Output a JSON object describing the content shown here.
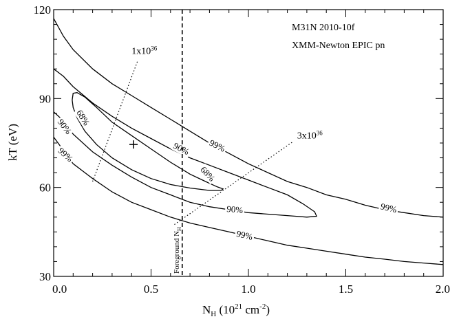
{
  "chart_data": {
    "type": "contour",
    "xlabel": "N",
    "xlabel_sub": "H",
    "xlabel_unit_pre": " (10",
    "xlabel_unit_sup1": "21",
    "xlabel_unit_mid": " cm",
    "xlabel_unit_sup2": "-2",
    "xlabel_unit_post": ")",
    "ylabel": "kT (eV)",
    "xlim": [
      0.0,
      2.0
    ],
    "ylim": [
      30,
      120
    ],
    "x_ticks": [
      {
        "value": 0.0,
        "label": "0.0"
      },
      {
        "value": 0.5,
        "label": "0.5"
      },
      {
        "value": 1.0,
        "label": "1.0"
      },
      {
        "value": 1.5,
        "label": "1.5"
      },
      {
        "value": 2.0,
        "label": "2.0"
      }
    ],
    "y_ticks": [
      {
        "value": 30,
        "label": "30"
      },
      {
        "value": 60,
        "label": "60"
      },
      {
        "value": 90,
        "label": "90"
      },
      {
        "value": 120,
        "label": "120"
      }
    ],
    "annotations": [
      "M31N 2010-10f",
      "XMM-Newton EPIC pn"
    ],
    "best_fit": {
      "x": 0.41,
      "y": 74.5
    },
    "foreground_nh": {
      "x": 0.66,
      "label": "Foreground N",
      "label_sub": "H"
    },
    "contours": [
      {
        "level": "68%",
        "closed": true,
        "points": [
          [
            0.1,
            91.8
          ],
          [
            0.12,
            92.0
          ],
          [
            0.16,
            90.5
          ],
          [
            0.22,
            87.0
          ],
          [
            0.3,
            82.0
          ],
          [
            0.4,
            77.5
          ],
          [
            0.5,
            73.0
          ],
          [
            0.6,
            68.5
          ],
          [
            0.7,
            64.5
          ],
          [
            0.78,
            62.0
          ],
          [
            0.84,
            60.2
          ],
          [
            0.87,
            59.5
          ],
          [
            0.86,
            59.0
          ],
          [
            0.8,
            59.0
          ],
          [
            0.7,
            59.8
          ],
          [
            0.6,
            61.0
          ],
          [
            0.5,
            63.0
          ],
          [
            0.4,
            66.0
          ],
          [
            0.3,
            70.0
          ],
          [
            0.22,
            74.5
          ],
          [
            0.16,
            79.0
          ],
          [
            0.12,
            83.5
          ],
          [
            0.1,
            87.0
          ],
          [
            0.095,
            89.5
          ],
          [
            0.1,
            91.8
          ]
        ],
        "labels": [
          {
            "text": "68%",
            "x": 0.15,
            "y": 83.5,
            "angle": 58
          },
          {
            "text": "68%",
            "x": 0.79,
            "y": 64.5,
            "angle": 47
          }
        ]
      },
      {
        "level": "90%",
        "closed": true,
        "points": [
          [
            0.0,
            85.5
          ],
          [
            0.05,
            82.5
          ],
          [
            0.1,
            78.0
          ],
          [
            0.2,
            72.0
          ],
          [
            0.3,
            67.5
          ],
          [
            0.4,
            63.5
          ],
          [
            0.5,
            60.0
          ],
          [
            0.6,
            57.5
          ],
          [
            0.7,
            55.0
          ],
          [
            0.8,
            53.5
          ],
          [
            0.9,
            52.5
          ],
          [
            1.0,
            51.5
          ],
          [
            1.1,
            51.0
          ],
          [
            1.2,
            50.5
          ],
          [
            1.3,
            50.0
          ],
          [
            1.35,
            50.3
          ],
          [
            1.34,
            51.8
          ],
          [
            1.28,
            54.5
          ],
          [
            1.2,
            57.5
          ],
          [
            1.1,
            60.0
          ],
          [
            1.0,
            62.5
          ],
          [
            0.9,
            65.0
          ],
          [
            0.8,
            67.5
          ],
          [
            0.7,
            70.0
          ],
          [
            0.6,
            73.0
          ],
          [
            0.5,
            76.5
          ],
          [
            0.4,
            80.0
          ],
          [
            0.3,
            84.0
          ],
          [
            0.2,
            88.5
          ],
          [
            0.1,
            94.0
          ],
          [
            0.05,
            97.5
          ],
          [
            0.0,
            100.0
          ]
        ],
        "labels": [
          {
            "text": "90%",
            "x": 0.055,
            "y": 80.5,
            "angle": 52
          },
          {
            "text": "90%",
            "x": 0.655,
            "y": 73.0,
            "angle": 27
          },
          {
            "text": "90%",
            "x": 0.93,
            "y": 52.5,
            "angle": 5
          }
        ]
      },
      {
        "level": "99%",
        "closed": false,
        "points": [
          [
            0.0,
            117.0
          ],
          [
            0.05,
            111.0
          ],
          [
            0.1,
            106.5
          ],
          [
            0.2,
            100.0
          ],
          [
            0.3,
            95.0
          ],
          [
            0.4,
            91.0
          ],
          [
            0.5,
            87.0
          ],
          [
            0.6,
            83.0
          ],
          [
            0.7,
            79.0
          ],
          [
            0.8,
            75.0
          ],
          [
            0.9,
            71.5
          ],
          [
            1.0,
            68.0
          ],
          [
            1.1,
            65.0
          ],
          [
            1.2,
            62.0
          ],
          [
            1.3,
            60.0
          ],
          [
            1.4,
            57.5
          ],
          [
            1.5,
            56.0
          ],
          [
            1.6,
            54.0
          ],
          [
            1.7,
            52.5
          ],
          [
            1.8,
            51.5
          ],
          [
            1.9,
            50.5
          ],
          [
            2.0,
            50.0
          ]
        ],
        "labels": [
          {
            "text": "99%",
            "x": 0.84,
            "y": 74.0,
            "angle": 26
          },
          {
            "text": "99%",
            "x": 1.72,
            "y": 53.0,
            "angle": 13
          }
        ]
      },
      {
        "level": "99%",
        "closed": false,
        "points": [
          [
            0.0,
            77.0
          ],
          [
            0.05,
            72.5
          ],
          [
            0.1,
            68.0
          ],
          [
            0.2,
            63.0
          ],
          [
            0.3,
            58.5
          ],
          [
            0.4,
            55.0
          ],
          [
            0.5,
            52.5
          ],
          [
            0.6,
            50.0
          ],
          [
            0.7,
            48.0
          ],
          [
            0.8,
            46.5
          ],
          [
            0.9,
            45.0
          ],
          [
            1.0,
            43.5
          ],
          [
            1.1,
            42.0
          ],
          [
            1.2,
            40.5
          ],
          [
            1.3,
            39.5
          ],
          [
            1.4,
            38.5
          ],
          [
            1.5,
            37.5
          ],
          [
            1.6,
            36.5
          ],
          [
            1.7,
            35.8
          ],
          [
            1.8,
            35.0
          ],
          [
            1.9,
            34.5
          ],
          [
            2.0,
            34.0
          ]
        ],
        "labels": [
          {
            "text": "99%",
            "x": 0.06,
            "y": 71.0,
            "angle": 42
          },
          {
            "text": "99%",
            "x": 0.98,
            "y": 43.8,
            "angle": 13
          }
        ]
      }
    ],
    "luminosity_lines": [
      {
        "label": "1x10",
        "label_sup": "36",
        "points": [
          [
            0.2,
            62.0
          ],
          [
            0.43,
            102.5
          ]
        ],
        "label_pos": {
          "x": 0.4,
          "y": 105.0
        }
      },
      {
        "label": "3x10",
        "label_sup": "36",
        "points": [
          [
            0.62,
            47.5
          ],
          [
            1.23,
            75.5
          ]
        ],
        "label_pos": {
          "x": 1.25,
          "y": 76.5
        }
      }
    ]
  }
}
